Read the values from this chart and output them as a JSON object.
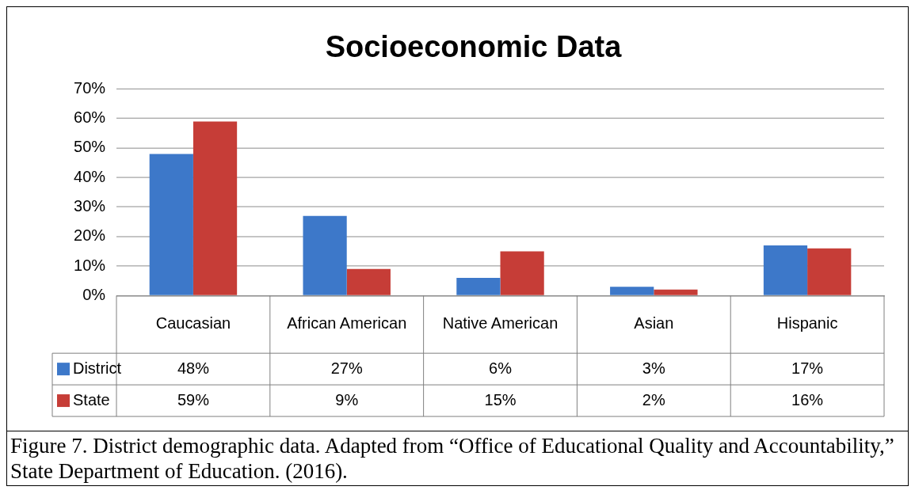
{
  "chart_data": {
    "type": "bar",
    "title": "Socioeconomic Data",
    "categories": [
      "Caucasian",
      "African American",
      "Native American",
      "Asian",
      "Hispanic"
    ],
    "series": [
      {
        "name": "District",
        "color": "#3d78c9",
        "values": [
          48,
          27,
          6,
          3,
          17
        ],
        "value_labels": [
          "48%",
          "27%",
          "6%",
          "3%",
          "17%"
        ]
      },
      {
        "name": "State",
        "color": "#c63d37",
        "values": [
          59,
          9,
          15,
          2,
          16
        ],
        "value_labels": [
          "59%",
          "9%",
          "15%",
          "2%",
          "16%"
        ]
      }
    ],
    "ylim": [
      0,
      70
    ],
    "yticks": [
      {
        "value": 0,
        "label": "0%"
      },
      {
        "value": 10,
        "label": "10%"
      },
      {
        "value": 20,
        "label": "20%"
      },
      {
        "value": 30,
        "label": "30%"
      },
      {
        "value": 40,
        "label": "40%"
      },
      {
        "value": 50,
        "label": "50%"
      },
      {
        "value": 60,
        "label": "60%"
      },
      {
        "value": 70,
        "label": "70%"
      }
    ],
    "grid": "y",
    "legend": "bottom",
    "annotations": [
      "Figure 7.  District demographic data. Adapted from “Office of Educational Quality and Accountability,” State Department of Education. (2016)."
    ]
  }
}
